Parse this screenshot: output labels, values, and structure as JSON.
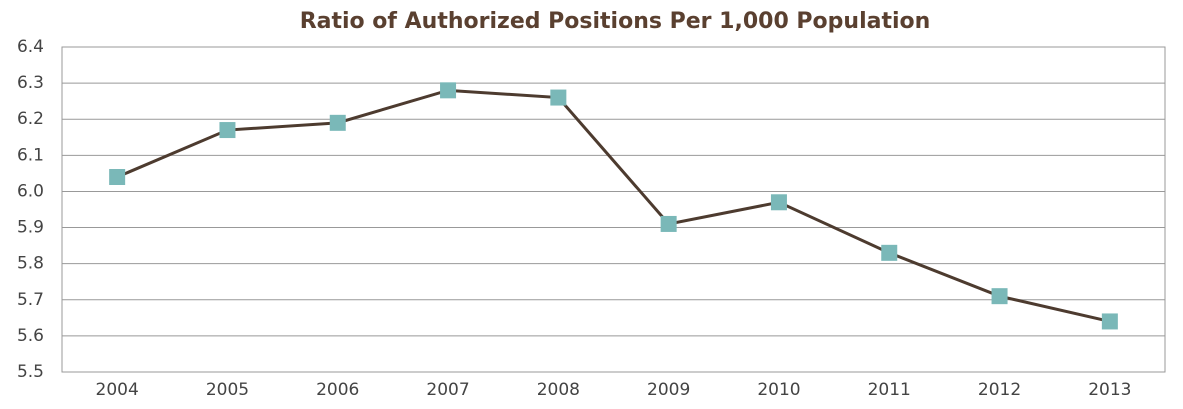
{
  "chart_data": {
    "type": "line",
    "title": "Ratio of Authorized Positions Per 1,000 Population",
    "categories": [
      "2004",
      "2005",
      "2006",
      "2007",
      "2008",
      "2009",
      "2010",
      "2011",
      "2012",
      "2013"
    ],
    "series": [
      {
        "name": "Ratio",
        "color": "#4d3b2f",
        "marker_color": "#7ab8b8",
        "values": [
          6.04,
          6.17,
          6.19,
          6.28,
          6.26,
          5.91,
          5.97,
          5.83,
          5.71,
          5.64
        ]
      }
    ],
    "ylim": [
      5.5,
      6.4
    ],
    "yticks": [
      5.5,
      5.6,
      5.7,
      5.8,
      5.9,
      {
        "value": 6.0,
        "label": "6.0"
      },
      6.1,
      6.2,
      6.3,
      6.4
    ],
    "grid": true
  }
}
